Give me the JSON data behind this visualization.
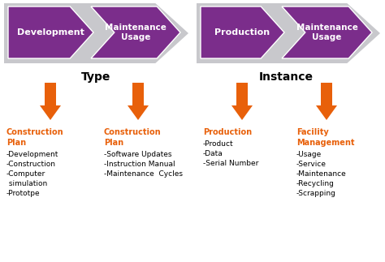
{
  "bg_color": "#e8e8e8",
  "gray_bg": "#c8c8cc",
  "purple_color": "#7b2d8b",
  "orange_color": "#e8600a",
  "white_color": "#ffffff",
  "black_color": "#1a1a1a",
  "type_label": "Type",
  "instance_label": "Instance",
  "chevron_labels": [
    "Development",
    "Maintenance\nUsage",
    "Production",
    "Maintenance\nUsage"
  ],
  "col_titles": [
    "Construction\nPlan",
    "Construction\nPlan",
    "Production",
    "Facility\nManagement"
  ],
  "col_items": [
    [
      "-Development",
      "-Construction",
      "-Computer",
      " simulation",
      "-Prototpe"
    ],
    [
      "-Software Updates",
      "-Instruction Manual",
      "-Maintenance  Cycles"
    ],
    [
      "-Product",
      "-Data",
      "-Serial Number"
    ],
    [
      "-Usage",
      "-Service",
      "-Maintenance",
      "-Recycling",
      "-Scrapping"
    ]
  ]
}
